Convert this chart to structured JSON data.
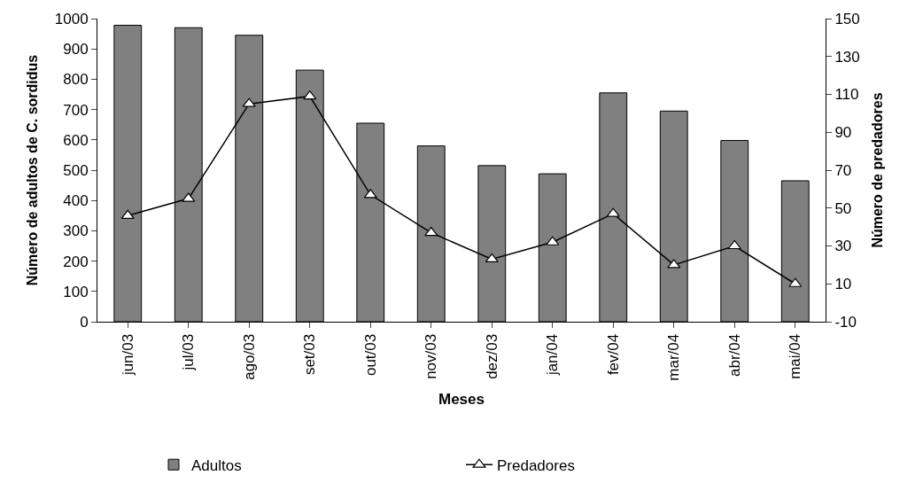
{
  "chart_data": {
    "type": "bar",
    "xlabel": "Meses",
    "ylabel": "Número de adultos de C. sordidus",
    "y2label": "Número de predadores",
    "categories": [
      "jun/03",
      "jul/03",
      "ago/03",
      "set/03",
      "out/03",
      "nov/03",
      "dez/03",
      "jan/04",
      "fev/04",
      "mar/04",
      "abr/04",
      "mai/04"
    ],
    "series": [
      {
        "name": "Adultos",
        "color": "#808080",
        "values": [
          978,
          970,
          945,
          830,
          655,
          580,
          515,
          488,
          755,
          695,
          598,
          465
        ]
      },
      {
        "name": "Predadores",
        "type": "line",
        "axis": "y2",
        "color": "#000000",
        "marker": "triangle",
        "values": [
          46,
          55,
          105,
          109,
          57,
          37,
          23,
          32,
          47,
          20,
          30,
          10
        ]
      }
    ],
    "ylim": [
      0,
      1000
    ],
    "yticks": [
      0,
      100,
      200,
      300,
      400,
      500,
      600,
      700,
      800,
      900,
      1000
    ],
    "y2lim": [
      -10,
      150
    ],
    "y2ticks": [
      -10,
      10,
      30,
      50,
      70,
      90,
      110,
      130,
      150
    ],
    "legend": "bottom"
  }
}
